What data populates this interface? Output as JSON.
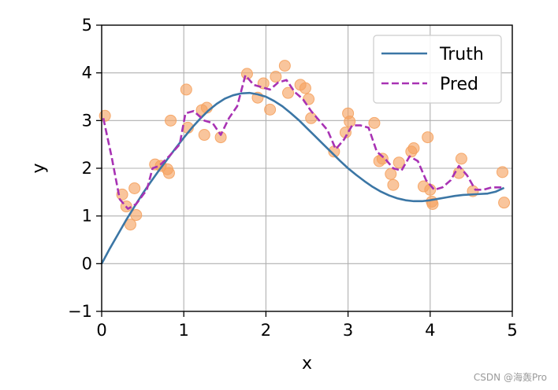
{
  "chart_data": {
    "type": "line",
    "xlabel": "x",
    "ylabel": "y",
    "xlim": [
      0,
      5
    ],
    "ylim": [
      -1,
      5
    ],
    "xticks": [
      "0",
      "1",
      "2",
      "3",
      "4",
      "5"
    ],
    "yticks": [
      "−1",
      "0",
      "1",
      "2",
      "3",
      "4",
      "5"
    ],
    "grid": true,
    "legend_position": "top-right",
    "series": [
      {
        "name": "Truth",
        "style": "solid",
        "color": "#3b76a5",
        "x": [
          0.0,
          0.1,
          0.2,
          0.3,
          0.4,
          0.5,
          0.6,
          0.7,
          0.8,
          0.9,
          1.0,
          1.1,
          1.2,
          1.3,
          1.4,
          1.5,
          1.6,
          1.7,
          1.8,
          1.9,
          2.0,
          2.1,
          2.2,
          2.3,
          2.4,
          2.5,
          2.6,
          2.7,
          2.8,
          2.9,
          3.0,
          3.1,
          3.2,
          3.3,
          3.4,
          3.5,
          3.6,
          3.7,
          3.8,
          3.9,
          4.0,
          4.1,
          4.2,
          4.3,
          4.4,
          4.5,
          4.6,
          4.7,
          4.8,
          4.9
        ],
        "y": [
          0.0,
          0.32,
          0.62,
          0.92,
          1.2,
          1.47,
          1.72,
          1.96,
          2.19,
          2.42,
          2.64,
          2.85,
          3.04,
          3.21,
          3.35,
          3.46,
          3.53,
          3.57,
          3.58,
          3.55,
          3.5,
          3.41,
          3.3,
          3.16,
          3.01,
          2.84,
          2.67,
          2.5,
          2.33,
          2.16,
          2.0,
          1.86,
          1.73,
          1.61,
          1.51,
          1.43,
          1.37,
          1.33,
          1.31,
          1.31,
          1.33,
          1.36,
          1.39,
          1.42,
          1.44,
          1.45,
          1.46,
          1.47,
          1.51,
          1.59
        ]
      },
      {
        "name": "Pred",
        "style": "dashed",
        "color": "#a832b4",
        "x": [
          0.02,
          0.12,
          0.22,
          0.32,
          0.42,
          0.55,
          0.62,
          0.7,
          0.82,
          0.95,
          1.02,
          1.12,
          1.25,
          1.35,
          1.45,
          1.55,
          1.65,
          1.75,
          1.85,
          1.95,
          2.05,
          2.15,
          2.25,
          2.35,
          2.45,
          2.55,
          2.65,
          2.75,
          2.85,
          2.95,
          3.05,
          3.15,
          3.25,
          3.35,
          3.45,
          3.55,
          3.65,
          3.75,
          3.85,
          3.95,
          4.05,
          4.15,
          4.25,
          4.35,
          4.45,
          4.55,
          4.65,
          4.75,
          4.88
        ],
        "y": [
          3.05,
          2.25,
          1.35,
          1.15,
          1.25,
          1.55,
          2.0,
          2.05,
          2.25,
          2.5,
          3.15,
          3.2,
          3.0,
          2.95,
          2.7,
          3.05,
          3.3,
          3.95,
          3.75,
          3.7,
          3.65,
          3.8,
          3.85,
          3.6,
          3.45,
          3.2,
          3.0,
          2.8,
          2.4,
          2.6,
          2.9,
          2.9,
          2.85,
          2.35,
          2.2,
          2.0,
          1.95,
          2.25,
          2.15,
          1.75,
          1.55,
          1.6,
          1.75,
          2.05,
          1.85,
          1.55,
          1.55,
          1.6,
          1.6
        ]
      }
    ],
    "scatter_points": {
      "color": "#f5a25f",
      "x": [
        0.04,
        0.25,
        0.3,
        0.35,
        0.4,
        0.42,
        0.65,
        0.72,
        0.8,
        0.82,
        0.84,
        1.03,
        1.05,
        1.22,
        1.25,
        1.28,
        1.45,
        1.77,
        1.9,
        1.97,
        2.05,
        2.12,
        2.23,
        2.27,
        2.42,
        2.48,
        2.52,
        2.55,
        2.83,
        2.97,
        3.0,
        3.02,
        3.32,
        3.38,
        3.42,
        3.52,
        3.55,
        3.62,
        3.77,
        3.8,
        3.92,
        3.97,
        4.0,
        4.02,
        4.03,
        4.35,
        4.38,
        4.52,
        4.88,
        4.9
      ],
      "y": [
        3.1,
        1.45,
        1.2,
        0.82,
        1.58,
        1.02,
        2.08,
        2.05,
        1.98,
        1.9,
        3.0,
        3.65,
        2.85,
        3.22,
        2.7,
        3.27,
        2.65,
        3.98,
        3.48,
        3.78,
        3.23,
        3.92,
        4.15,
        3.58,
        3.75,
        3.68,
        3.45,
        3.05,
        2.35,
        2.75,
        3.15,
        2.98,
        2.95,
        2.15,
        2.2,
        1.88,
        1.65,
        2.12,
        2.35,
        2.42,
        1.62,
        2.65,
        1.55,
        1.3,
        1.25,
        1.9,
        2.2,
        1.52,
        1.92,
        1.28
      ]
    }
  },
  "watermark": "CSDN @海轰Pro"
}
